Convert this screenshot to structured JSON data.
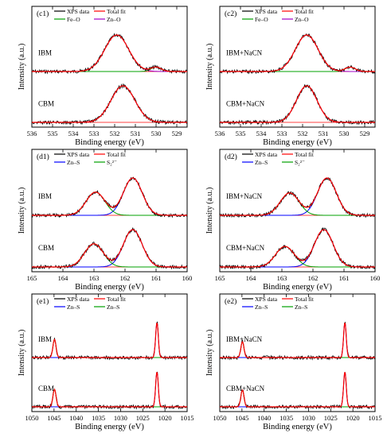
{
  "chart_data": [
    {
      "id": "c1",
      "type": "line",
      "panel_label": "(c1)",
      "xlabel": "Binding energy (eV)",
      "ylabel": "Intensity (a.u.)",
      "xlim": [
        536,
        528.5
      ],
      "xticks": [
        "536",
        "535",
        "534",
        "533",
        "532",
        "531",
        "530",
        "529"
      ],
      "legend": [
        {
          "name": "XPS data",
          "color": "#000000"
        },
        {
          "name": "Total fit",
          "color": "#ff0000"
        },
        {
          "name": "Fe–O",
          "color": "#00a000"
        },
        {
          "name": "Zn–O",
          "color": "#a000c8"
        }
      ],
      "traces": [
        {
          "label": "IBM",
          "peaks": [
            {
              "center": 531.9,
              "height": 1.0,
              "width": 1.05,
              "component": "Zn–O"
            },
            {
              "center": 530.0,
              "height": 0.12,
              "width": 0.45,
              "component": "Fe–O"
            }
          ]
        },
        {
          "label": "CBM",
          "peaks": [
            {
              "center": 531.6,
              "height": 1.0,
              "width": 1.05,
              "component": "Zn–O"
            }
          ]
        }
      ]
    },
    {
      "id": "c2",
      "type": "line",
      "panel_label": "(c2)",
      "xlabel": "Binding energy (eV)",
      "ylabel": "Intensity (a.u.)",
      "xlim": [
        536,
        528.5
      ],
      "xticks": [
        "536",
        "535",
        "534",
        "533",
        "532",
        "531",
        "530",
        "529"
      ],
      "legend": [
        {
          "name": "XPS data",
          "color": "#000000"
        },
        {
          "name": "Total fit",
          "color": "#ff0000"
        },
        {
          "name": "Fe–O",
          "color": "#00a000"
        },
        {
          "name": "Zn–O",
          "color": "#a000c8"
        }
      ],
      "traces": [
        {
          "label": "IBM+NaCN",
          "peaks": [
            {
              "center": 531.8,
              "height": 1.0,
              "width": 1.0,
              "component": "Zn–O"
            },
            {
              "center": 529.7,
              "height": 0.12,
              "width": 0.45,
              "component": "Fe–O"
            }
          ]
        },
        {
          "label": "CBM+NaCN",
          "peaks": [
            {
              "center": 531.8,
              "height": 1.0,
              "width": 0.9,
              "component": "Zn–O"
            }
          ]
        }
      ]
    },
    {
      "id": "d1",
      "type": "line",
      "panel_label": "(d1)",
      "xlabel": "Binding energy (eV)",
      "ylabel": "Intensity (a.u.)",
      "xlim": [
        165,
        160
      ],
      "xticks": [
        "165",
        "164",
        "163",
        "162",
        "161",
        "160"
      ],
      "legend": [
        {
          "name": "XPS data",
          "color": "#000000"
        },
        {
          "name": "Total fit",
          "color": "#ff0000"
        },
        {
          "name": "Zn–S",
          "color": "#0000ff"
        },
        {
          "name": "S₂²⁻",
          "color": "#00a000"
        }
      ],
      "traces": [
        {
          "label": "IBM",
          "peaks": [
            {
              "center": 161.75,
              "height": 1.0,
              "width": 0.55,
              "component": "Zn–S"
            },
            {
              "center": 162.95,
              "height": 0.62,
              "width": 0.55,
              "component": "S₂²⁻"
            }
          ]
        },
        {
          "label": "CBM",
          "peaks": [
            {
              "center": 161.75,
              "height": 1.0,
              "width": 0.55,
              "component": "Zn–S"
            },
            {
              "center": 163.0,
              "height": 0.62,
              "width": 0.55,
              "component": "S₂²⁻"
            }
          ]
        }
      ]
    },
    {
      "id": "d2",
      "type": "line",
      "panel_label": "(d2)",
      "xlabel": "Binding energy (eV)",
      "ylabel": "Intensity (a.u.)",
      "xlim": [
        165,
        160
      ],
      "xticks": [
        "165",
        "164",
        "163",
        "162",
        "161",
        "160"
      ],
      "legend": [
        {
          "name": "XPS data",
          "color": "#000000"
        },
        {
          "name": "Total fit",
          "color": "#ff0000"
        },
        {
          "name": "Zn–S",
          "color": "#0000ff"
        },
        {
          "name": "S₂²⁻",
          "color": "#00a000"
        }
      ],
      "traces": [
        {
          "label": "IBM+NaCN",
          "peaks": [
            {
              "center": 161.55,
              "height": 1.0,
              "width": 0.55,
              "component": "Zn–S"
            },
            {
              "center": 162.75,
              "height": 0.6,
              "width": 0.55,
              "component": "S₂²⁻"
            }
          ]
        },
        {
          "label": "CBM+NaCN",
          "peaks": [
            {
              "center": 161.65,
              "height": 1.0,
              "width": 0.55,
              "component": "Zn–S"
            },
            {
              "center": 162.9,
              "height": 0.55,
              "width": 0.55,
              "component": "S₂²⁻"
            }
          ]
        }
      ]
    },
    {
      "id": "e1",
      "type": "line",
      "panel_label": "(e1)",
      "xlabel": "Binding energy (eV)",
      "ylabel": "Intensity (a.u.)",
      "xlim": [
        1050,
        1015
      ],
      "xticks": [
        "1050",
        "1045",
        "1040",
        "1035",
        "1030",
        "1025",
        "1020",
        "1015"
      ],
      "legend": [
        {
          "name": "XPS data",
          "color": "#000000"
        },
        {
          "name": "Total fit",
          "color": "#ff0000"
        },
        {
          "name": "Zn–S",
          "color": "#0000ff"
        },
        {
          "name": "Zn–S",
          "color": "#00a000"
        }
      ],
      "traces": [
        {
          "label": "IBM",
          "peaks": [
            {
              "center": 1021.8,
              "height": 1.0,
              "width": 0.55,
              "component": "Zn–S (blue)"
            },
            {
              "center": 1044.9,
              "height": 0.52,
              "width": 0.65,
              "component": "Zn–S (green)"
            }
          ]
        },
        {
          "label": "CBM",
          "peaks": [
            {
              "center": 1021.8,
              "height": 1.0,
              "width": 0.55,
              "component": "Zn–S (blue)"
            },
            {
              "center": 1044.9,
              "height": 0.5,
              "width": 0.65,
              "component": "Zn–S (green)"
            }
          ]
        }
      ]
    },
    {
      "id": "e2",
      "type": "line",
      "panel_label": "(e2)",
      "xlabel": "Binding energy (eV)",
      "ylabel": "Intensity (a.u.)",
      "xlim": [
        1050,
        1015
      ],
      "xticks": [
        "1050",
        "1045",
        "1040",
        "1035",
        "1030",
        "1025",
        "1020",
        "1015"
      ],
      "legend": [
        {
          "name": "XPS data",
          "color": "#000000"
        },
        {
          "name": "Total fit",
          "color": "#ff0000"
        },
        {
          "name": "Zn–S",
          "color": "#0000ff"
        },
        {
          "name": "Zn–S",
          "color": "#00a000"
        }
      ],
      "traces": [
        {
          "label": "IBM+NaCN",
          "peaks": [
            {
              "center": 1021.8,
              "height": 1.0,
              "width": 0.55,
              "component": "Zn–S (blue)"
            },
            {
              "center": 1044.9,
              "height": 0.45,
              "width": 0.65,
              "component": "Zn–S (green)"
            }
          ]
        },
        {
          "label": "CBM+NaCN",
          "peaks": [
            {
              "center": 1021.8,
              "height": 1.0,
              "width": 0.55,
              "component": "Zn–S (blue)"
            },
            {
              "center": 1044.9,
              "height": 0.48,
              "width": 0.65,
              "component": "Zn–S (green)"
            }
          ]
        }
      ]
    }
  ]
}
